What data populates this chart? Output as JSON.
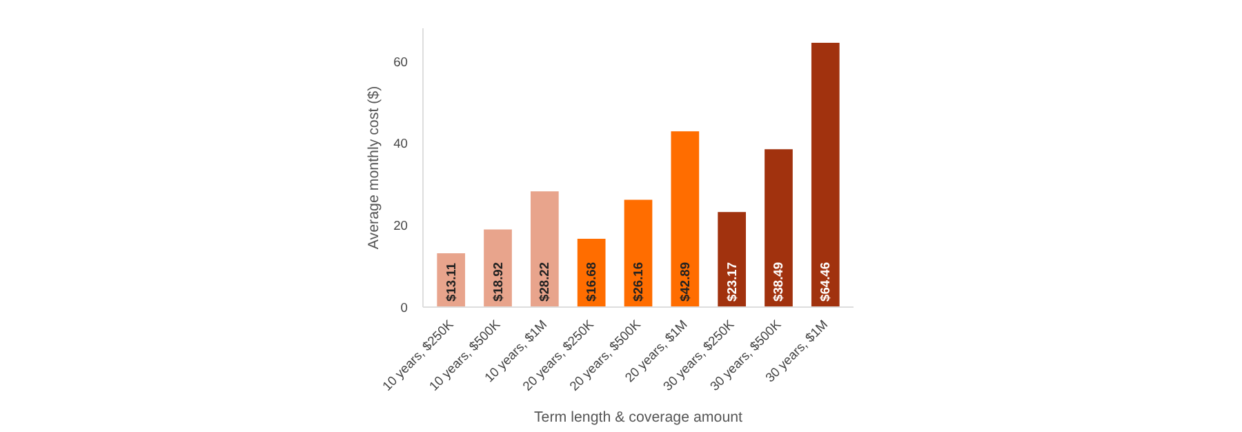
{
  "chart_data": {
    "type": "bar",
    "xlabel": "Term length & coverage amount",
    "ylabel": "Average monthly cost ($)",
    "categories": [
      "10 years, $250K",
      "10 years, $500K",
      "10 years, $1M",
      "20 years, $250K",
      "20 years, $500K",
      "20 years, $1M",
      "30 years, $250K",
      "30 years, $500K",
      "30 years, $1M"
    ],
    "values": [
      13.11,
      18.92,
      28.22,
      16.68,
      26.16,
      42.89,
      23.17,
      38.49,
      64.46
    ],
    "colors": [
      "#e8a48c",
      "#e8a48c",
      "#e8a48c",
      "#ff6d00",
      "#ff6d00",
      "#ff6d00",
      "#a1320e",
      "#a1320e",
      "#a1320e"
    ],
    "value_labels": [
      "$13.11",
      "$18.92",
      "$28.22",
      "$16.68",
      "$26.16",
      "$42.89",
      "$23.17",
      "$38.49",
      "$64.46"
    ],
    "ylim": [
      0,
      68
    ],
    "yticks": [
      0,
      20,
      40,
      60
    ],
    "grid": false
  }
}
